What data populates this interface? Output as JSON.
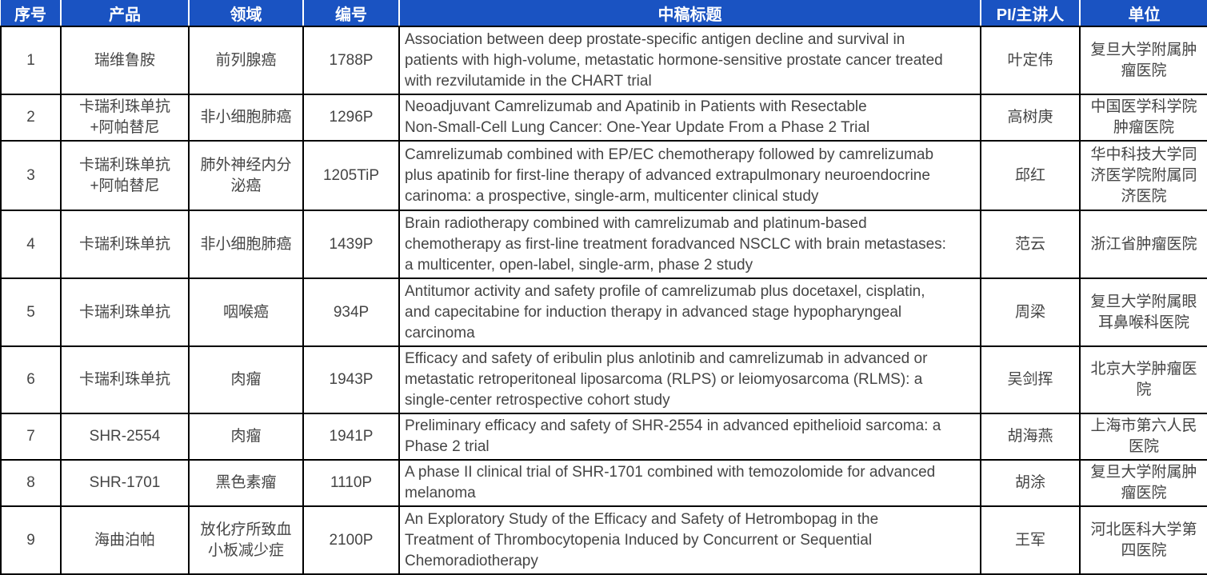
{
  "colors": {
    "header_bg": "#1A53C2",
    "header_text": "#FFFFFF",
    "border": "#000000",
    "body_text": "#454545"
  },
  "table": {
    "columns": [
      {
        "key": "num",
        "label": "序号"
      },
      {
        "key": "product",
        "label": "产品"
      },
      {
        "key": "field",
        "label": "领域"
      },
      {
        "key": "code",
        "label": "编号"
      },
      {
        "key": "title",
        "label": "中稿标题"
      },
      {
        "key": "pi",
        "label": "PI/主讲人"
      },
      {
        "key": "org",
        "label": "单位"
      }
    ],
    "rows": [
      {
        "num": "1",
        "product": "瑞维鲁胺",
        "field": "前列腺癌",
        "code": "1788P",
        "title": "Association between deep prostate-specific antigen decline and survival in\npatients with high-volume, metastatic hormone-sensitive prostate cancer treated\nwith rezvilutamide in the CHART trial",
        "pi": "叶定伟",
        "org": "复旦大学附属肿\n瘤医院"
      },
      {
        "num": "2",
        "product": "卡瑞利珠单抗\n+阿帕替尼",
        "field": "非小细胞肺癌",
        "code": "1296P",
        "title": "Neoadjuvant Camrelizumab and Apatinib in Patients with Resectable\nNon-Small-Cell Lung Cancer: One-Year Update From a Phase 2 Trial",
        "pi": "高树庚",
        "org": "中国医学科学院\n肿瘤医院"
      },
      {
        "num": "3",
        "product": "卡瑞利珠单抗\n+阿帕替尼",
        "field": "肺外神经内分\n泌癌",
        "code": "1205TiP",
        "title": "Camrelizumab combined with EP/EC chemotherapy followed by camrelizumab\nplus apatinib for first-line therapy of advanced extrapulmonary neuroendocrine\ncarinoma: a prospective, single-arm, multicenter clinical study",
        "pi": "邱红",
        "org": "华中科技大学同\n济医学院附属同\n济医院"
      },
      {
        "num": "4",
        "product": "卡瑞利珠单抗",
        "field": "非小细胞肺癌",
        "code": "1439P",
        "title": "Brain radiotherapy combined with camrelizumab and platinum-based\nchemotherapy as first-line treatment foradvanced NSCLC with brain metastases:\na multicenter, open-label, single-arm, phase 2 study",
        "pi": "范云",
        "org": "浙江省肿瘤医院"
      },
      {
        "num": "5",
        "product": "卡瑞利珠单抗",
        "field": "咽喉癌",
        "code": "934P",
        "title": "Antitumor activity and safety profile of camrelizumab plus docetaxel, cisplatin,\nand capecitabine for induction therapy in advanced stage hypopharyngeal\ncarcinoma",
        "pi": "周梁",
        "org": "复旦大学附属眼\n耳鼻喉科医院"
      },
      {
        "num": "6",
        "product": "卡瑞利珠单抗",
        "field": "肉瘤",
        "code": "1943P",
        "title": "Efficacy and safety of eribulin plus anlotinib and camrelizumab in advanced or\nmetastatic retroperitoneal liposarcoma (RLPS) or leiomyosarcoma (RLMS): a\nsingle-center retrospective cohort study",
        "pi": "吴剑挥",
        "org": "北京大学肿瘤医\n院"
      },
      {
        "num": "7",
        "product": "SHR-2554",
        "field": "肉瘤",
        "code": "1941P",
        "title": "Preliminary efficacy and safety of SHR-2554 in advanced epithelioid sarcoma: a\nPhase 2 trial",
        "pi": "胡海燕",
        "org": "上海市第六人民\n医院"
      },
      {
        "num": "8",
        "product": "SHR-1701",
        "field": "黑色素瘤",
        "code": "1110P",
        "title": "A phase II clinical trial of SHR-1701 combined with temozolomide for advanced\nmelanoma",
        "pi": "胡涂",
        "org": "复旦大学附属肿\n瘤医院"
      },
      {
        "num": "9",
        "product": "海曲泊帕",
        "field": "放化疗所致血\n小板减少症",
        "code": "2100P",
        "title": "An Exploratory Study of the Efficacy and Safety of Hetrombopag in the\nTreatment of Thrombocytopenia Induced by Concurrent or Sequential\nChemoradiotherapy",
        "pi": "王军",
        "org": "河北医科大学第\n四医院"
      }
    ]
  }
}
